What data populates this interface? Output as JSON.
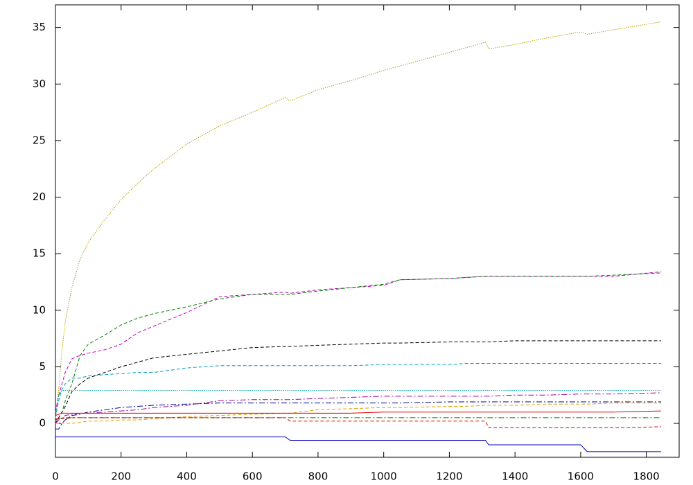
{
  "chart_data": {
    "type": "line",
    "x": [
      0,
      10,
      20,
      30,
      50,
      75,
      100,
      150,
      200,
      250,
      300,
      400,
      500,
      600,
      700,
      715,
      800,
      900,
      1000,
      1050,
      1200,
      1250,
      1310,
      1320,
      1400,
      1500,
      1600,
      1620,
      1700,
      1845
    ],
    "xlim": [
      0,
      1900
    ],
    "xticks": [
      0,
      200,
      400,
      600,
      800,
      1000,
      1200,
      1400,
      1600,
      1800
    ],
    "ylim": [
      -3,
      37
    ],
    "yticks": [
      0,
      5,
      10,
      15,
      20,
      25,
      30,
      35
    ],
    "series": [
      {
        "color": "#c0a000",
        "style": "dotted",
        "values": [
          0.5,
          3,
          6.5,
          9,
          12,
          14.5,
          16,
          18,
          19.8,
          21.2,
          22.5,
          24.7,
          26.3,
          27.5,
          28.8,
          28.5,
          29.5,
          30.3,
          31.2,
          31.6,
          32.8,
          33.2,
          33.7,
          33.1,
          33.5,
          34.1,
          34.6,
          34.4,
          34.8,
          35.5
        ]
      },
      {
        "color": "#c000c0",
        "style": "dashed",
        "values": [
          1,
          2.5,
          3.5,
          4.5,
          5.7,
          6,
          6.2,
          6.5,
          7,
          8,
          8.6,
          9.8,
          11.2,
          11.4,
          11.6,
          11.5,
          11.8,
          12,
          12.2,
          12.7,
          12.8,
          12.9,
          13,
          13,
          13,
          13,
          13,
          13,
          13,
          13.4
        ]
      },
      {
        "color": "#008000",
        "style": "dashed",
        "values": [
          0,
          0.5,
          1,
          2,
          3.5,
          6,
          7,
          7.8,
          8.7,
          9.3,
          9.7,
          10.3,
          11,
          11.4,
          11.4,
          11.4,
          11.7,
          12,
          12.3,
          12.7,
          12.8,
          12.9,
          13,
          13,
          13,
          13,
          13,
          13,
          13.1,
          13.3
        ]
      },
      {
        "color": "#000000",
        "style": "dashed",
        "values": [
          0,
          0.5,
          1,
          1.5,
          2.8,
          3.5,
          4,
          4.5,
          5,
          5.4,
          5.8,
          6.1,
          6.4,
          6.7,
          6.8,
          6.8,
          6.9,
          7,
          7.1,
          7.1,
          7.2,
          7.2,
          7.2,
          7.2,
          7.3,
          7.3,
          7.3,
          7.3,
          7.3,
          7.3
        ]
      },
      {
        "color": "#00a0c0",
        "style": "dashed",
        "values": [
          0.5,
          2,
          3,
          3.5,
          4,
          4,
          4.2,
          4.3,
          4.4,
          4.5,
          4.5,
          4.9,
          5.1,
          5.1,
          5.1,
          5.1,
          5.1,
          5.1,
          5.2,
          5.2,
          5.2,
          5.3,
          5.3,
          5.3,
          5.3,
          5.3,
          5.3,
          5.3,
          5.3,
          5.3
        ]
      },
      {
        "color": "#00a0a0",
        "style": "dotted",
        "values": [
          0.5,
          2.5,
          2.9,
          2.9,
          2.9,
          2.9,
          2.9,
          2.9,
          2.9,
          2.9,
          2.9,
          2.9,
          2.9,
          2.9,
          2.9,
          2.9,
          2.9,
          2.9,
          2.9,
          2.9,
          2.9,
          2.9,
          2.9,
          2.9,
          2.9,
          2.9,
          2.9,
          2.9,
          2.9,
          2.9
        ]
      },
      {
        "color": "#0000a0",
        "style": "dashdot",
        "values": [
          -0.5,
          -0.5,
          0,
          0.3,
          0.7,
          0.8,
          1,
          1.2,
          1.4,
          1.5,
          1.6,
          1.7,
          1.8,
          1.8,
          1.8,
          1.8,
          1.8,
          1.8,
          1.8,
          1.8,
          1.9,
          1.9,
          1.9,
          1.9,
          1.9,
          1.9,
          1.9,
          1.9,
          1.9,
          1.9
        ]
      },
      {
        "color": "#a000a0",
        "style": "dashdot",
        "values": [
          0,
          0.3,
          0.5,
          0.7,
          0.8,
          0.9,
          0.9,
          1,
          1.1,
          1.2,
          1.4,
          1.6,
          2,
          2.1,
          2.1,
          2.1,
          2.2,
          2.3,
          2.4,
          2.4,
          2.4,
          2.4,
          2.4,
          2.4,
          2.5,
          2.5,
          2.6,
          2.6,
          2.6,
          2.7
        ]
      },
      {
        "color": "#e0a000",
        "style": "dashed",
        "values": [
          0,
          0,
          0,
          0,
          0,
          0.1,
          0.2,
          0.2,
          0.3,
          0.3,
          0.4,
          0.6,
          0.7,
          0.8,
          0.9,
          0.9,
          1.2,
          1.3,
          1.4,
          1.4,
          1.5,
          1.5,
          1.6,
          1.6,
          1.6,
          1.7,
          1.7,
          1.7,
          1.8,
          1.8
        ]
      },
      {
        "color": "#e00000",
        "style": "solid",
        "values": [
          0.7,
          0.8,
          0.9,
          0.9,
          0.9,
          0.9,
          0.9,
          0.9,
          0.9,
          0.9,
          0.9,
          0.9,
          0.9,
          0.9,
          0.9,
          0.9,
          0.9,
          0.9,
          1,
          1,
          1,
          1,
          1,
          1,
          1,
          1,
          1,
          1,
          1,
          1.1
        ]
      },
      {
        "color": "#008000",
        "style": "dashdot",
        "values": [
          0.3,
          0.4,
          0.5,
          0.5,
          0.5,
          0.5,
          0.5,
          0.5,
          0.5,
          0.5,
          0.5,
          0.5,
          0.5,
          0.5,
          0.5,
          0.5,
          0.5,
          0.5,
          0.5,
          0.5,
          0.5,
          0.5,
          0.5,
          0.5,
          0.5,
          0.5,
          0.5,
          0.5,
          0.5,
          0.5
        ]
      },
      {
        "color": "#e00000",
        "style": "dashed",
        "values": [
          0.4,
          0.4,
          0.4,
          0.4,
          0.5,
          0.5,
          0.5,
          0.5,
          0.5,
          0.5,
          0.5,
          0.5,
          0.5,
          0.5,
          0.5,
          0.2,
          0.2,
          0.2,
          0.2,
          0.2,
          0.2,
          0.2,
          0.2,
          -0.4,
          -0.4,
          -0.4,
          -0.4,
          -0.4,
          -0.4,
          -0.3
        ]
      },
      {
        "color": "#0000c0",
        "style": "solid",
        "values": [
          -1.2,
          -1.2,
          -1.2,
          -1.2,
          -1.2,
          -1.2,
          -1.2,
          -1.2,
          -1.2,
          -1.2,
          -1.2,
          -1.2,
          -1.2,
          -1.2,
          -1.2,
          -1.5,
          -1.5,
          -1.5,
          -1.5,
          -1.5,
          -1.5,
          -1.5,
          -1.5,
          -1.9,
          -1.9,
          -1.9,
          -1.9,
          -2.5,
          -2.5,
          -2.5
        ]
      }
    ]
  }
}
